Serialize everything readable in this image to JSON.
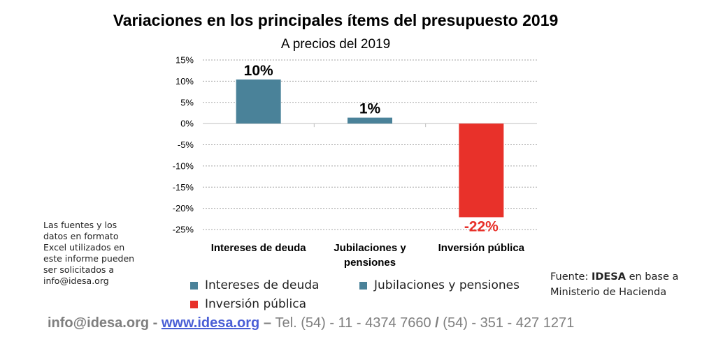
{
  "chart_data": {
    "type": "bar",
    "title": "Variaciones en los principales ítems del presupuesto 2019",
    "subtitle": "A precios del 2019",
    "categories": [
      "Intereses de deuda",
      "Jubilaciones y pensiones",
      "Inversión pública"
    ],
    "category_lines": [
      [
        "Intereses de deuda"
      ],
      [
        "Jubilaciones y",
        "pensiones"
      ],
      [
        "Inversión pública"
      ]
    ],
    "values": [
      10.4,
      1.4,
      -22.1
    ],
    "data_labels": [
      "10%",
      "1%",
      "-22%"
    ],
    "colors": [
      "#4a8299",
      "#4a8299",
      "#e8312a"
    ],
    "label_colors": [
      "#000000",
      "#000000",
      "#e8312a"
    ],
    "ylim": [
      -25,
      15
    ],
    "yticks": [
      15,
      10,
      5,
      0,
      -5,
      -10,
      -15,
      -20,
      -25
    ],
    "ytick_labels": [
      "15%",
      "10%",
      "5%",
      "0%",
      "-5%",
      "-10%",
      "-15%",
      "-20%",
      "-25%"
    ],
    "grid": true,
    "legend_position": "bottom",
    "xlabel": "",
    "ylabel": ""
  },
  "legend": {
    "items": [
      {
        "label": "Intereses de deuda",
        "color": "#4a8299"
      },
      {
        "label": "Jubilaciones y pensiones",
        "color": "#4a8299"
      },
      {
        "label": "Inversión pública",
        "color": "#e8312a"
      }
    ]
  },
  "side_note": {
    "lines": [
      "Las fuentes y los",
      "datos en formato",
      "Excel utilizados en",
      "este informe pueden",
      "ser solicitados a",
      "info@idesa.org"
    ]
  },
  "source": {
    "prefix": "Fuente: ",
    "brand": "IDESA",
    "suffix": " en base a",
    "line2": "Ministerio de Hacienda"
  },
  "footer": {
    "email": "info@idesa.org",
    "sep1": " - ",
    "website": "www.idesa.org",
    "sep2": " – ",
    "tel1": "Tel. (54) - 11 - 4374 7660 ",
    "slash": "/",
    "tel2": " (54) - 351 - 427 1271"
  }
}
